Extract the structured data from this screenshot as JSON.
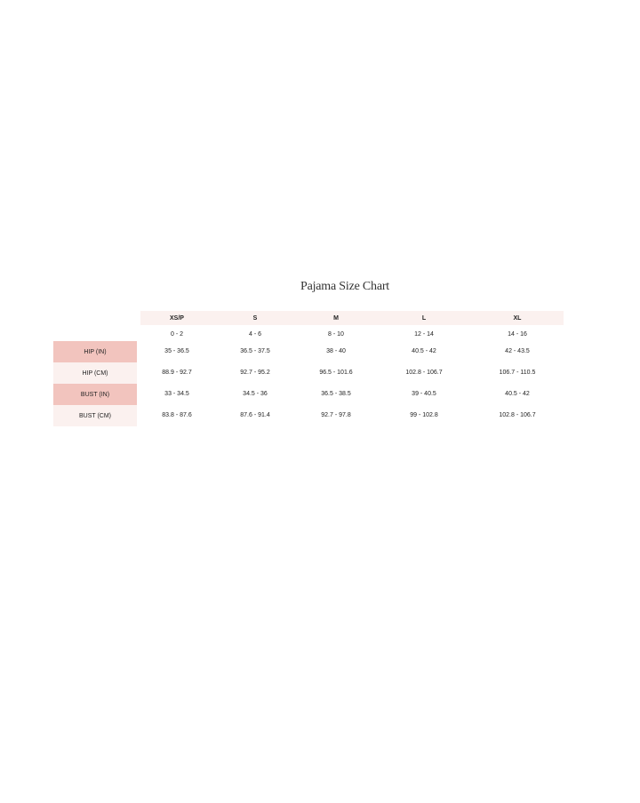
{
  "title": "Pajama Size Chart",
  "sizes": [
    "XS/P",
    "S",
    "M",
    "L",
    "XL"
  ],
  "numeric_sizes": [
    "0 - 2",
    "4 - 6",
    "8 - 10",
    "12 - 14",
    "14 - 16"
  ],
  "rows": [
    {
      "label": "HIP (IN)",
      "values": [
        "35 - 36.5",
        "36.5 - 37.5",
        "38 - 40",
        "40.5 - 42",
        "42 - 43.5"
      ]
    },
    {
      "label": "HIP (CM)",
      "values": [
        "88.9 - 92.7",
        "92.7 - 95.2",
        "96.5 - 101.6",
        "102.8 - 106.7",
        "106.7 - 110.5"
      ]
    },
    {
      "label": "BUST (IN)",
      "values": [
        "33 - 34.5",
        "34.5 - 36",
        "36.5 - 38.5",
        "39 - 40.5",
        "40.5 - 42"
      ]
    },
    {
      "label": "BUST (CM)",
      "values": [
        "83.8 - 87.6",
        "87.6 - 91.4",
        "92.7 - 97.8",
        "99 - 102.8",
        "102.8 - 106.7"
      ]
    }
  ],
  "colors": {
    "label_dark": "#f2c4be",
    "label_light": "#fbf1ef",
    "header_bg": "#fbf1ef"
  }
}
